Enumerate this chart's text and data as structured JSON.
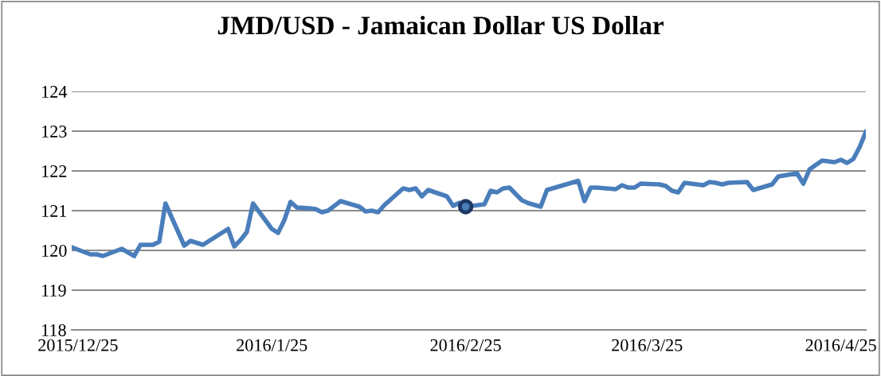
{
  "chart_data": {
    "type": "line",
    "title": "JMD/USD - Jamaican Dollar US Dollar",
    "x": [
      "2015-12-24",
      "2015-12-27",
      "2015-12-28",
      "2015-12-29",
      "2016-01-01",
      "2016-01-03",
      "2016-01-04",
      "2016-01-06",
      "2016-01-07",
      "2016-01-08",
      "2016-01-11",
      "2016-01-12",
      "2016-01-14",
      "2016-01-18",
      "2016-01-19",
      "2016-01-20",
      "2016-01-21",
      "2016-01-22",
      "2016-01-25",
      "2016-01-26",
      "2016-01-27",
      "2016-01-28",
      "2016-01-29",
      "2016-01-31",
      "2016-02-01",
      "2016-02-02",
      "2016-02-03",
      "2016-02-05",
      "2016-02-08",
      "2016-02-09",
      "2016-02-10",
      "2016-02-11",
      "2016-02-12",
      "2016-02-15",
      "2016-02-16",
      "2016-02-17",
      "2016-02-18",
      "2016-02-19",
      "2016-02-22",
      "2016-02-23",
      "2016-02-24",
      "2016-02-25",
      "2016-02-28",
      "2016-02-29",
      "2016-03-01",
      "2016-03-02",
      "2016-03-03",
      "2016-03-05",
      "2016-03-06",
      "2016-03-08",
      "2016-03-09",
      "2016-03-14",
      "2016-03-15",
      "2016-03-16",
      "2016-03-17",
      "2016-03-20",
      "2016-03-21",
      "2016-03-22",
      "2016-03-23",
      "2016-03-24",
      "2016-03-27",
      "2016-03-28",
      "2016-03-29",
      "2016-03-30",
      "2016-03-31",
      "2016-04-03",
      "2016-04-04",
      "2016-04-05",
      "2016-04-06",
      "2016-04-07",
      "2016-04-10",
      "2016-04-11",
      "2016-04-14",
      "2016-04-15",
      "2016-04-18",
      "2016-04-19",
      "2016-04-20",
      "2016-04-22",
      "2016-04-24",
      "2016-04-25",
      "2016-04-26",
      "2016-04-27",
      "2016-04-28",
      "2016-04-29"
    ],
    "series": [
      {
        "color": "#4a7ebb",
        "values": [
          120.08,
          119.9,
          119.9,
          119.86,
          120.04,
          119.86,
          120.14,
          120.14,
          120.22,
          121.18,
          120.12,
          120.24,
          120.14,
          120.54,
          120.1,
          120.26,
          120.46,
          121.18,
          120.54,
          120.44,
          120.76,
          121.22,
          121.08,
          121.06,
          121.04,
          120.96,
          121.0,
          121.24,
          121.1,
          120.98,
          121.0,
          120.96,
          121.14,
          121.56,
          121.52,
          121.56,
          121.36,
          121.52,
          121.36,
          121.12,
          121.2,
          121.1,
          121.16,
          121.5,
          121.46,
          121.56,
          121.58,
          121.26,
          121.19,
          121.1,
          121.52,
          121.75,
          121.24,
          121.58,
          121.58,
          121.54,
          121.64,
          121.58,
          121.58,
          121.68,
          121.66,
          121.62,
          121.5,
          121.46,
          121.7,
          121.64,
          121.72,
          121.7,
          121.66,
          121.7,
          121.72,
          121.52,
          121.66,
          121.86,
          121.94,
          121.68,
          122.04,
          122.26,
          122.22,
          122.28,
          122.2,
          122.3,
          122.6,
          122.98
        ]
      },
      {
        "type": "scatter",
        "marker": "circle",
        "color": "#1f3864",
        "x": [
          "2016-02-25"
        ],
        "values": [
          121.1
        ]
      }
    ],
    "xlim": [
      "2015-12-24",
      "2016-04-29"
    ],
    "xticks": [
      {
        "value": "2015-12-25",
        "label": "2015/12/25"
      },
      {
        "value": "2016-01-25",
        "label": "2016/1/25"
      },
      {
        "value": "2016-02-25",
        "label": "2016/2/25"
      },
      {
        "value": "2016-03-25",
        "label": "2016/3/25"
      },
      {
        "value": "2016-04-25",
        "label": "2016/4/25"
      }
    ],
    "ylim": [
      118,
      124
    ],
    "yticks": [
      118,
      119,
      120,
      121,
      122,
      123,
      124
    ],
    "grid": "y",
    "marker": "none",
    "line_style": "solid"
  }
}
